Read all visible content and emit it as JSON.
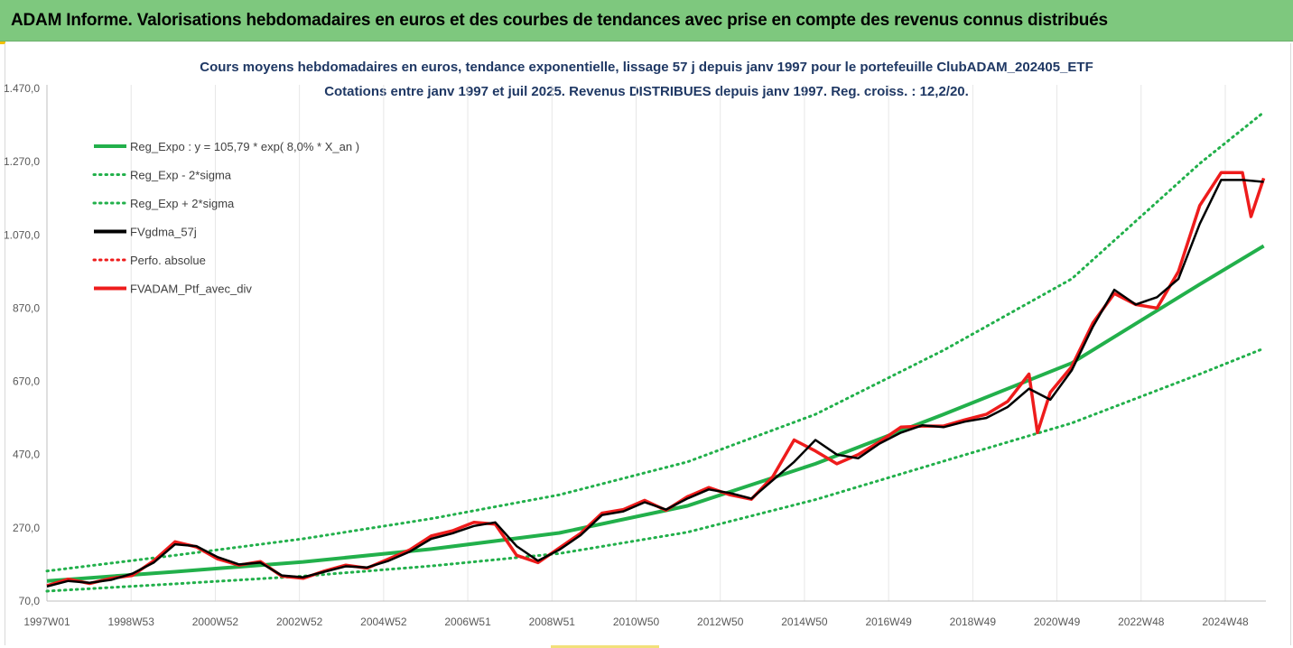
{
  "banner": {
    "title": "ADAM Informe. Valorisations hebdomadaires en euros et des courbes de tendances avec prise en compte des revenus connus distribués"
  },
  "colors": {
    "banner_bg": "#7ec87e",
    "title_text": "#1f3864",
    "green": "#22b04b",
    "red": "#ee1c1c",
    "black": "#000000",
    "grid": "#e6e6e6"
  },
  "chart_data": {
    "type": "line",
    "title": "Cours moyens hebdomadaires  en euros, tendance exponentielle, lissage 57 j depuis janv 1997 pour le portefeuille ClubADAM_202405_ETF",
    "subtitle": "Cotations  entre janv 1997 et juil 2025. Revenus DISTRIBUES depuis janv 1997. Reg. croiss. : 12,2/20.",
    "xlabel": "",
    "ylabel": "",
    "ylim": [
      70,
      1470
    ],
    "y_ticks": [
      "1.470,0",
      "1.270,0",
      "1.070,0",
      "870,0",
      "670,0",
      "470,0",
      "270,0",
      "70,0"
    ],
    "x_ticks": [
      "1997W01",
      "1998W53",
      "2000W52",
      "2002W52",
      "2004W52",
      "2006W51",
      "2008W51",
      "2010W50",
      "2012W50",
      "2014W50",
      "2016W49",
      "2018W49",
      "2020W49",
      "2022W48",
      "2024W48"
    ],
    "x_range": [
      1997.0,
      2025.55
    ],
    "grid": "vertical",
    "legend_position": "top-left",
    "legend": [
      {
        "label": "Reg_Expo : y = 105,79 * exp( 8,0% *  X_an )",
        "style": "solid",
        "color": "#22b04b"
      },
      {
        "label": "Reg_Exp - 2*sigma",
        "style": "dotted",
        "color": "#22b04b"
      },
      {
        "label": "Reg_Exp + 2*sigma",
        "style": "dotted",
        "color": "#22b04b"
      },
      {
        "label": "FVgdma_57j",
        "style": "solid",
        "color": "#000000"
      },
      {
        "label": "Perfo. absolue",
        "style": "dotted",
        "color": "#ee1c1c"
      },
      {
        "label": "FVADAM_Ptf_avec_div",
        "style": "solid",
        "color": "#ee1c1c"
      }
    ],
    "series": [
      {
        "name": "Reg_Expo : y = 105,79 * exp( 8,0% *  X_an )",
        "x": [
          1997.0,
          2000.0,
          2003.0,
          2006.0,
          2009.0,
          2012.0,
          2015.0,
          2018.0,
          2021.0,
          2024.0,
          2025.5
        ],
        "y": [
          125,
          150,
          177,
          212,
          256,
          330,
          445,
          580,
          720,
          935,
          1040
        ]
      },
      {
        "name": "Reg_Exp - 2*sigma",
        "x": [
          1997.0,
          2000.0,
          2003.0,
          2006.0,
          2009.0,
          2012.0,
          2015.0,
          2018.0,
          2021.0,
          2024.0,
          2025.5
        ],
        "y": [
          97,
          117,
          138,
          166,
          200,
          258,
          347,
          452,
          556,
          690,
          760
        ]
      },
      {
        "name": "Reg_Exp + 2*sigma",
        "x": [
          1997.0,
          2000.0,
          2003.0,
          2006.0,
          2009.0,
          2012.0,
          2015.0,
          2018.0,
          2021.0,
          2024.0,
          2025.5
        ],
        "y": [
          152,
          195,
          240,
          295,
          360,
          450,
          580,
          755,
          950,
          1265,
          1405
        ]
      },
      {
        "name": "FVgdma_57j",
        "x": [
          1997.0,
          1997.5,
          1998.0,
          1998.5,
          1999.0,
          1999.5,
          2000.0,
          2000.5,
          2001.0,
          2001.5,
          2002.0,
          2002.5,
          2003.0,
          2003.5,
          2004.0,
          2004.5,
          2005.0,
          2005.5,
          2006.0,
          2006.5,
          2007.0,
          2007.5,
          2008.0,
          2008.5,
          2009.0,
          2009.5,
          2010.0,
          2010.5,
          2011.0,
          2011.5,
          2012.0,
          2012.5,
          2013.0,
          2013.5,
          2014.0,
          2014.5,
          2015.0,
          2015.5,
          2016.0,
          2016.5,
          2017.0,
          2017.5,
          2018.0,
          2018.5,
          2019.0,
          2019.5,
          2020.0,
          2020.5,
          2021.0,
          2021.5,
          2022.0,
          2022.5,
          2023.0,
          2023.5,
          2024.0,
          2024.5,
          2025.0,
          2025.5
        ],
        "y": [
          110,
          125,
          120,
          128,
          145,
          175,
          225,
          220,
          190,
          170,
          175,
          140,
          135,
          150,
          165,
          162,
          180,
          205,
          240,
          255,
          275,
          285,
          220,
          180,
          210,
          250,
          305,
          315,
          340,
          320,
          350,
          375,
          365,
          350,
          400,
          450,
          510,
          470,
          460,
          500,
          530,
          550,
          545,
          560,
          570,
          600,
          650,
          620,
          700,
          820,
          920,
          880,
          900,
          950,
          1100,
          1220,
          1220,
          1215
        ]
      },
      {
        "name": "FVADAM_Ptf_avec_div",
        "x": [
          1997.0,
          1997.5,
          1998.0,
          1998.5,
          1999.0,
          1999.5,
          2000.0,
          2000.5,
          2001.0,
          2001.5,
          2002.0,
          2002.5,
          2003.0,
          2003.5,
          2004.0,
          2004.5,
          2005.0,
          2005.5,
          2006.0,
          2006.5,
          2007.0,
          2007.5,
          2008.0,
          2008.5,
          2009.0,
          2009.5,
          2010.0,
          2010.5,
          2011.0,
          2011.5,
          2012.0,
          2012.5,
          2013.0,
          2013.5,
          2014.0,
          2014.5,
          2015.0,
          2015.5,
          2016.0,
          2016.5,
          2017.0,
          2017.5,
          2018.0,
          2018.5,
          2019.0,
          2019.5,
          2020.0,
          2020.2,
          2020.5,
          2021.0,
          2021.5,
          2022.0,
          2022.5,
          2023.0,
          2023.5,
          2024.0,
          2024.5,
          2025.0,
          2025.2,
          2025.5
        ],
        "y": [
          112,
          130,
          118,
          132,
          140,
          180,
          232,
          218,
          185,
          168,
          178,
          138,
          132,
          152,
          168,
          160,
          185,
          210,
          248,
          262,
          285,
          280,
          195,
          175,
          215,
          255,
          310,
          320,
          345,
          318,
          355,
          380,
          360,
          348,
          410,
          510,
          480,
          445,
          470,
          505,
          545,
          548,
          548,
          565,
          580,
          615,
          690,
          530,
          640,
          710,
          830,
          910,
          880,
          870,
          970,
          1150,
          1240,
          1240,
          1120,
          1225
        ]
      }
    ]
  }
}
